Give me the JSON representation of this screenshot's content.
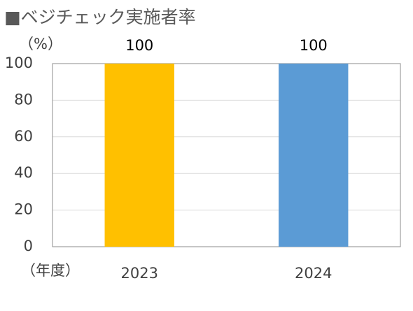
{
  "chart_data": {
    "type": "bar",
    "title": "■ベジチェック実施者率",
    "y_label": "（%）",
    "x_label": "（年度）",
    "categories": [
      "2023",
      "2024"
    ],
    "values": [
      100,
      100
    ],
    "colors": [
      "#ffc000",
      "#5b9bd5"
    ],
    "ylim": [
      0,
      100
    ],
    "yticks": [
      0,
      20,
      40,
      60,
      80,
      100
    ],
    "grid": true,
    "data_labels": true
  }
}
